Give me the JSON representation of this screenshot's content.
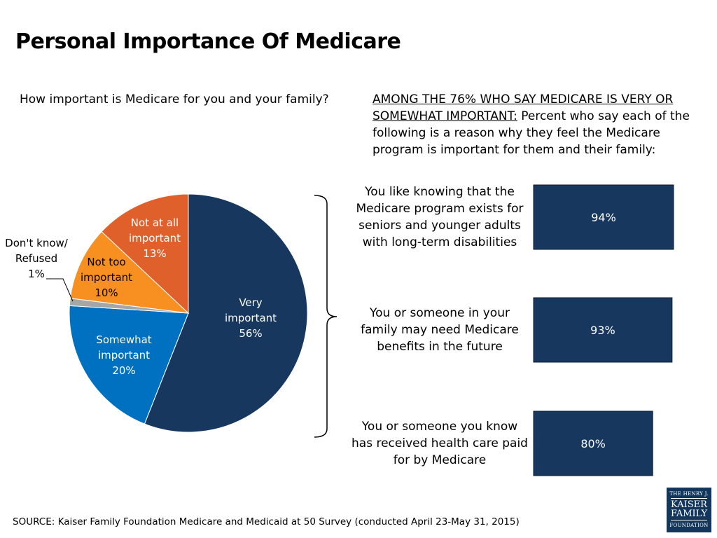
{
  "title": "Personal Importance Of Medicare",
  "question": "How important is Medicare for you and your family?",
  "intro": {
    "underlined": "AMONG THE 76% WHO SAY MEDICARE IS VERY OR SOMEWHAT IMPORTANT:",
    "rest": " Percent who say each of the following is a reason why they feel the Medicare program is important for them and their family:"
  },
  "source": "SOURCE: Kaiser Family Foundation Medicare and Medicaid at 50 Survey (conducted April 23-May 31, 2015)",
  "logo": {
    "line1": "THE HENRY J.",
    "line2": "KAISER",
    "line3": "FAMILY",
    "line4": "FOUNDATION"
  },
  "chart_data": [
    {
      "type": "pie",
      "slices": [
        {
          "label_lines": [
            "Very",
            "important",
            "56%"
          ],
          "value": 56,
          "color": "#17375e"
        },
        {
          "label_lines": [
            "Somewhat",
            "important",
            "20%"
          ],
          "value": 20,
          "color": "#0070c0"
        },
        {
          "label_lines": [
            "Don't know/",
            "Refused",
            "1%"
          ],
          "value": 1,
          "color": "#a6a6a6"
        },
        {
          "label_lines": [
            "Not too",
            "important",
            "10%"
          ],
          "value": 10,
          "color": "#f79021"
        },
        {
          "label_lines": [
            "Not at all",
            "important",
            "13%"
          ],
          "value": 13,
          "color": "#e0602b"
        }
      ]
    },
    {
      "type": "bar",
      "orientation": "horizontal",
      "categories": [
        [
          "You like knowing that the",
          "Medicare program exists for",
          "seniors and younger adults",
          "with long-term disabilities"
        ],
        [
          "You or someone in your",
          "family may need Medicare",
          "benefits in the future"
        ],
        [
          "You or someone you know",
          "has received health care paid",
          "for by Medicare"
        ]
      ],
      "values": [
        94,
        93,
        80
      ],
      "value_labels": [
        "94%",
        "93%",
        "80%"
      ],
      "color": "#17375e"
    }
  ]
}
